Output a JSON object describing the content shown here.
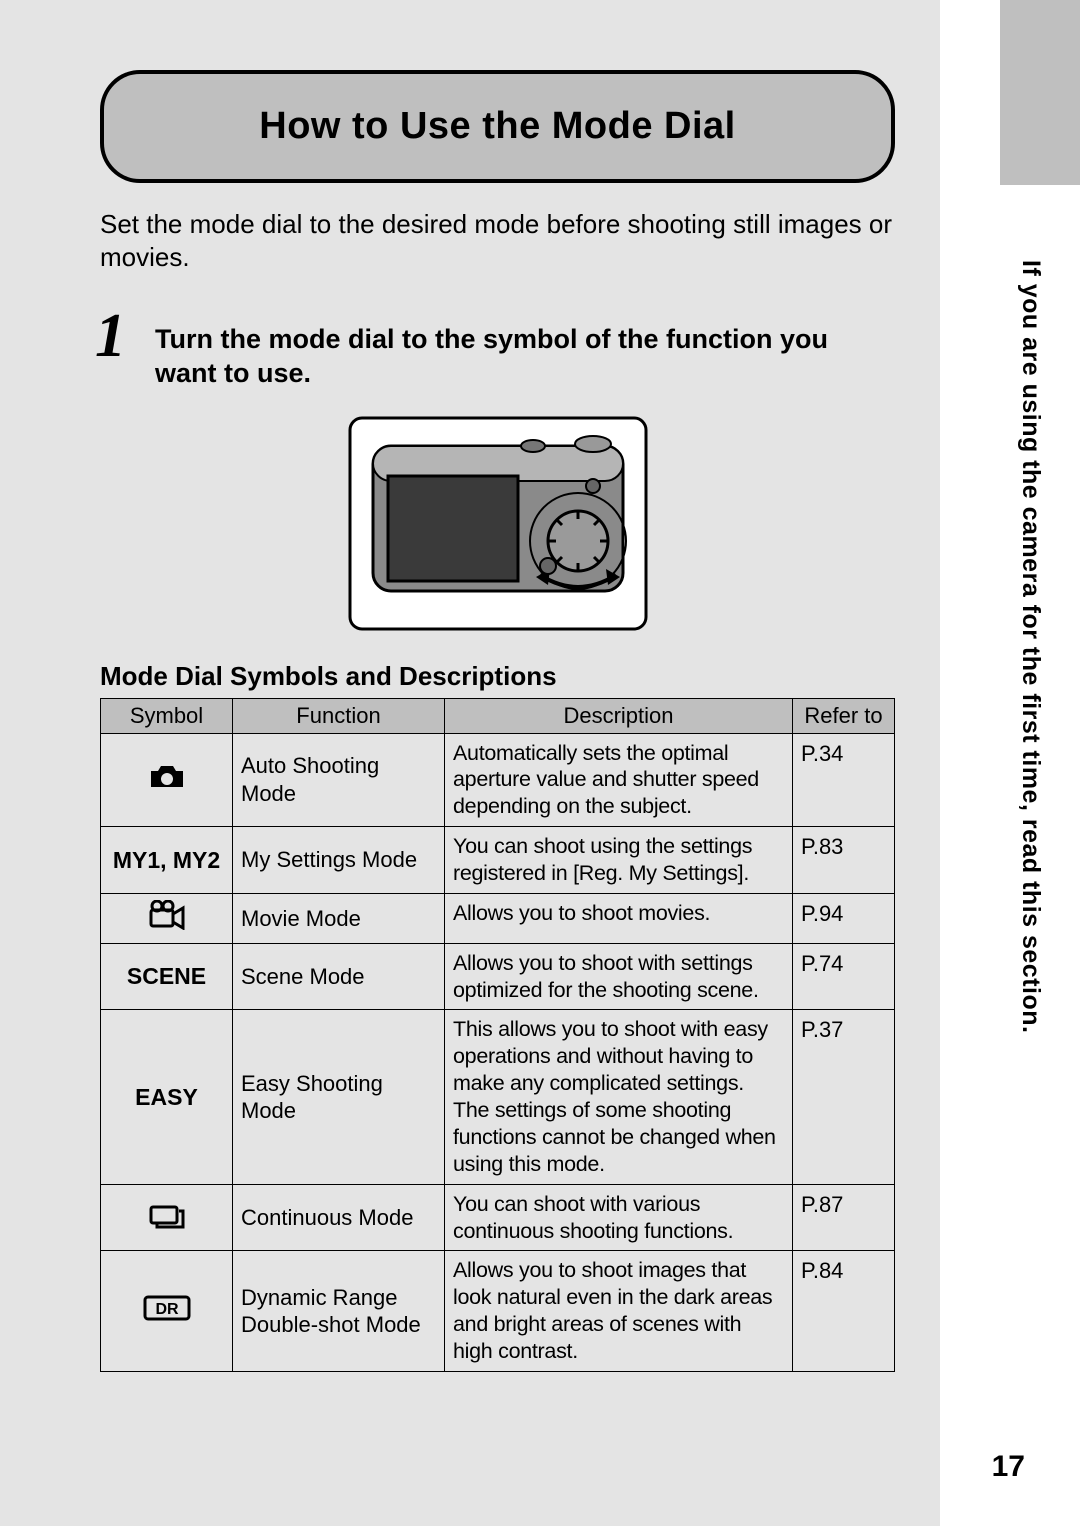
{
  "page": {
    "title": "How to Use the Mode Dial",
    "intro": "Set the mode dial to the desired mode before shooting still images or movies.",
    "step_number": "1",
    "step_text": "Turn the mode dial to the symbol of the function you want to use.",
    "subheading": "Mode Dial Symbols and Descriptions",
    "side_note": "If you are using the camera for the first time, read this section.",
    "page_number": "17"
  },
  "table": {
    "columns": [
      "Symbol",
      "Function",
      "Description",
      "Refer to"
    ],
    "rows": [
      {
        "symbol_kind": "icon",
        "symbol_label": "camera-icon",
        "function": "Auto Shooting Mode",
        "description": "Automatically sets the optimal aperture value and shutter speed depending on the subject.",
        "refer": "P.34"
      },
      {
        "symbol_kind": "text",
        "symbol_text": "MY1, MY2",
        "function": "My Settings Mode",
        "description": "You can shoot using the settings registered in [Reg. My Settings].",
        "refer": "P.83"
      },
      {
        "symbol_kind": "icon",
        "symbol_label": "movie-icon",
        "function": "Movie Mode",
        "description": "Allows you to shoot movies.",
        "refer": "P.94"
      },
      {
        "symbol_kind": "text",
        "symbol_text": "SCENE",
        "function": "Scene Mode",
        "description": "Allows you to shoot with settings optimized for the shooting scene.",
        "refer": "P.74"
      },
      {
        "symbol_kind": "text",
        "symbol_text": "EASY",
        "function": "Easy Shooting Mode",
        "description": "This allows you to shoot with easy operations and without having to make any complicated settings. The settings of some shooting functions cannot be changed when using this mode.",
        "refer": "P.37"
      },
      {
        "symbol_kind": "icon",
        "symbol_label": "continuous-icon",
        "function": "Continuous Mode",
        "description": "You can shoot with various continuous shooting functions.",
        "refer": "P.87"
      },
      {
        "symbol_kind": "icon",
        "symbol_label": "dr-icon",
        "function": "Dynamic Range Double-shot Mode",
        "description": "Allows you to shoot images that look natural even in the dark areas and bright areas of scenes with high contrast.",
        "refer": "P.84"
      }
    ]
  },
  "colors": {
    "page_bg": "#e4e4e4",
    "header_bg": "#bfbfbf",
    "border": "#000000",
    "text": "#000000"
  }
}
